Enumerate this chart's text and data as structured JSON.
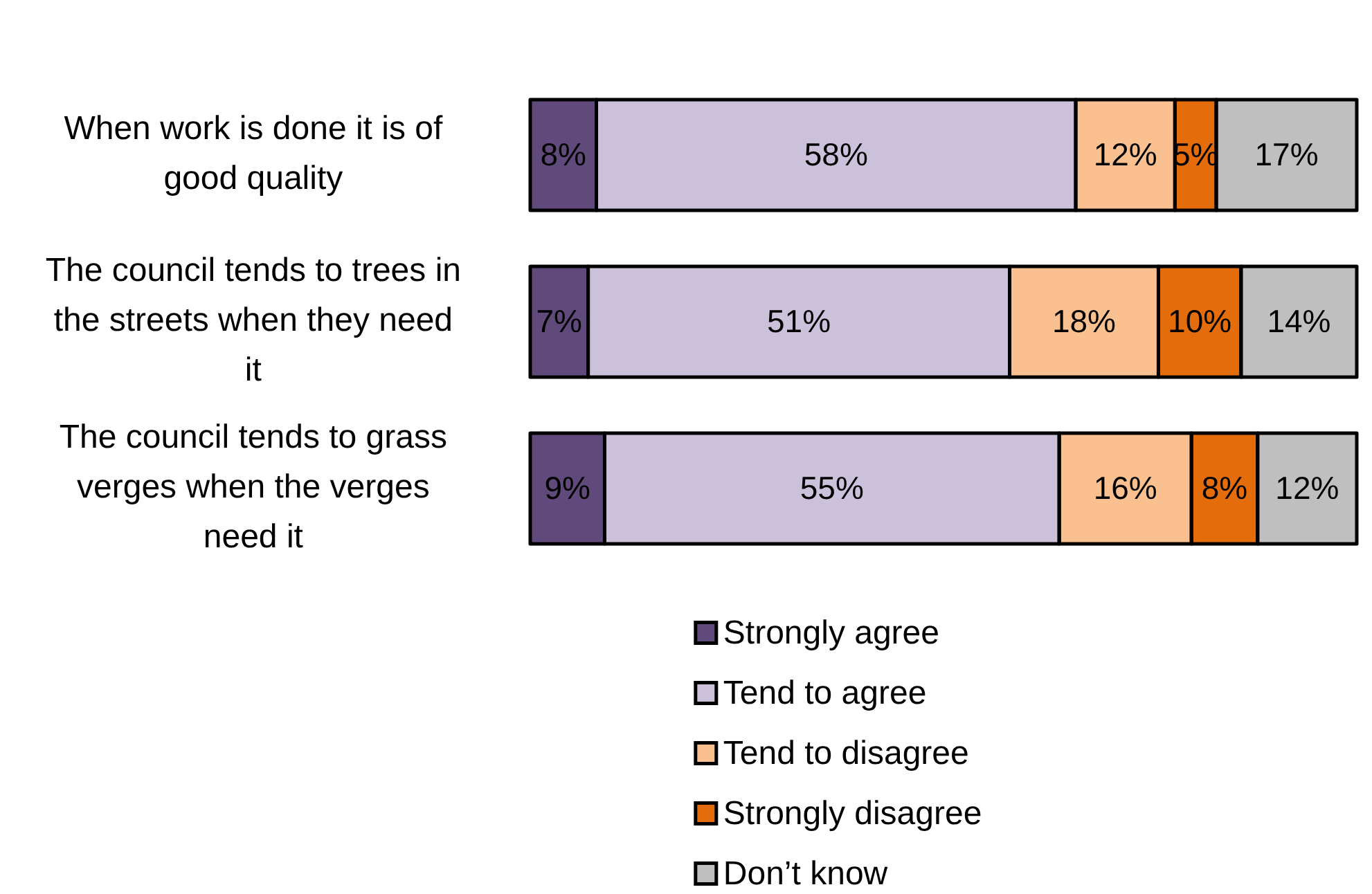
{
  "chart_data": {
    "type": "bar",
    "orientation": "horizontal",
    "stacked": true,
    "categories": [
      "When work is done it is of good quality",
      "The council tends to trees in the streets when they need it",
      "The council tends to grass verges when the verges need it"
    ],
    "series": [
      {
        "name": "Strongly agree",
        "color": "#604a7b",
        "values": [
          8,
          7,
          9
        ],
        "value_labels": [
          "8%",
          "7%",
          "9%"
        ]
      },
      {
        "name": "Tend to agree",
        "color": "#ccc1da",
        "values": [
          58,
          51,
          55
        ],
        "value_labels": [
          "58%",
          "51%",
          "55%"
        ]
      },
      {
        "name": "Tend to disagree",
        "color": "#fac090",
        "values": [
          12,
          18,
          16
        ],
        "value_labels": [
          "12%",
          "18%",
          "16%"
        ]
      },
      {
        "name": "Strongly disagree",
        "color": "#e46c0a",
        "values": [
          5,
          10,
          8
        ],
        "value_labels": [
          "5%",
          "10%",
          "8%"
        ]
      },
      {
        "name": "Don’t know",
        "color": "#bfbfbf",
        "values": [
          17,
          14,
          12
        ],
        "value_labels": [
          "17%",
          "14%",
          "12%"
        ]
      }
    ],
    "xlim": [
      0,
      100
    ],
    "tick_labels": "y",
    "grid": false,
    "legend": "bottom"
  }
}
